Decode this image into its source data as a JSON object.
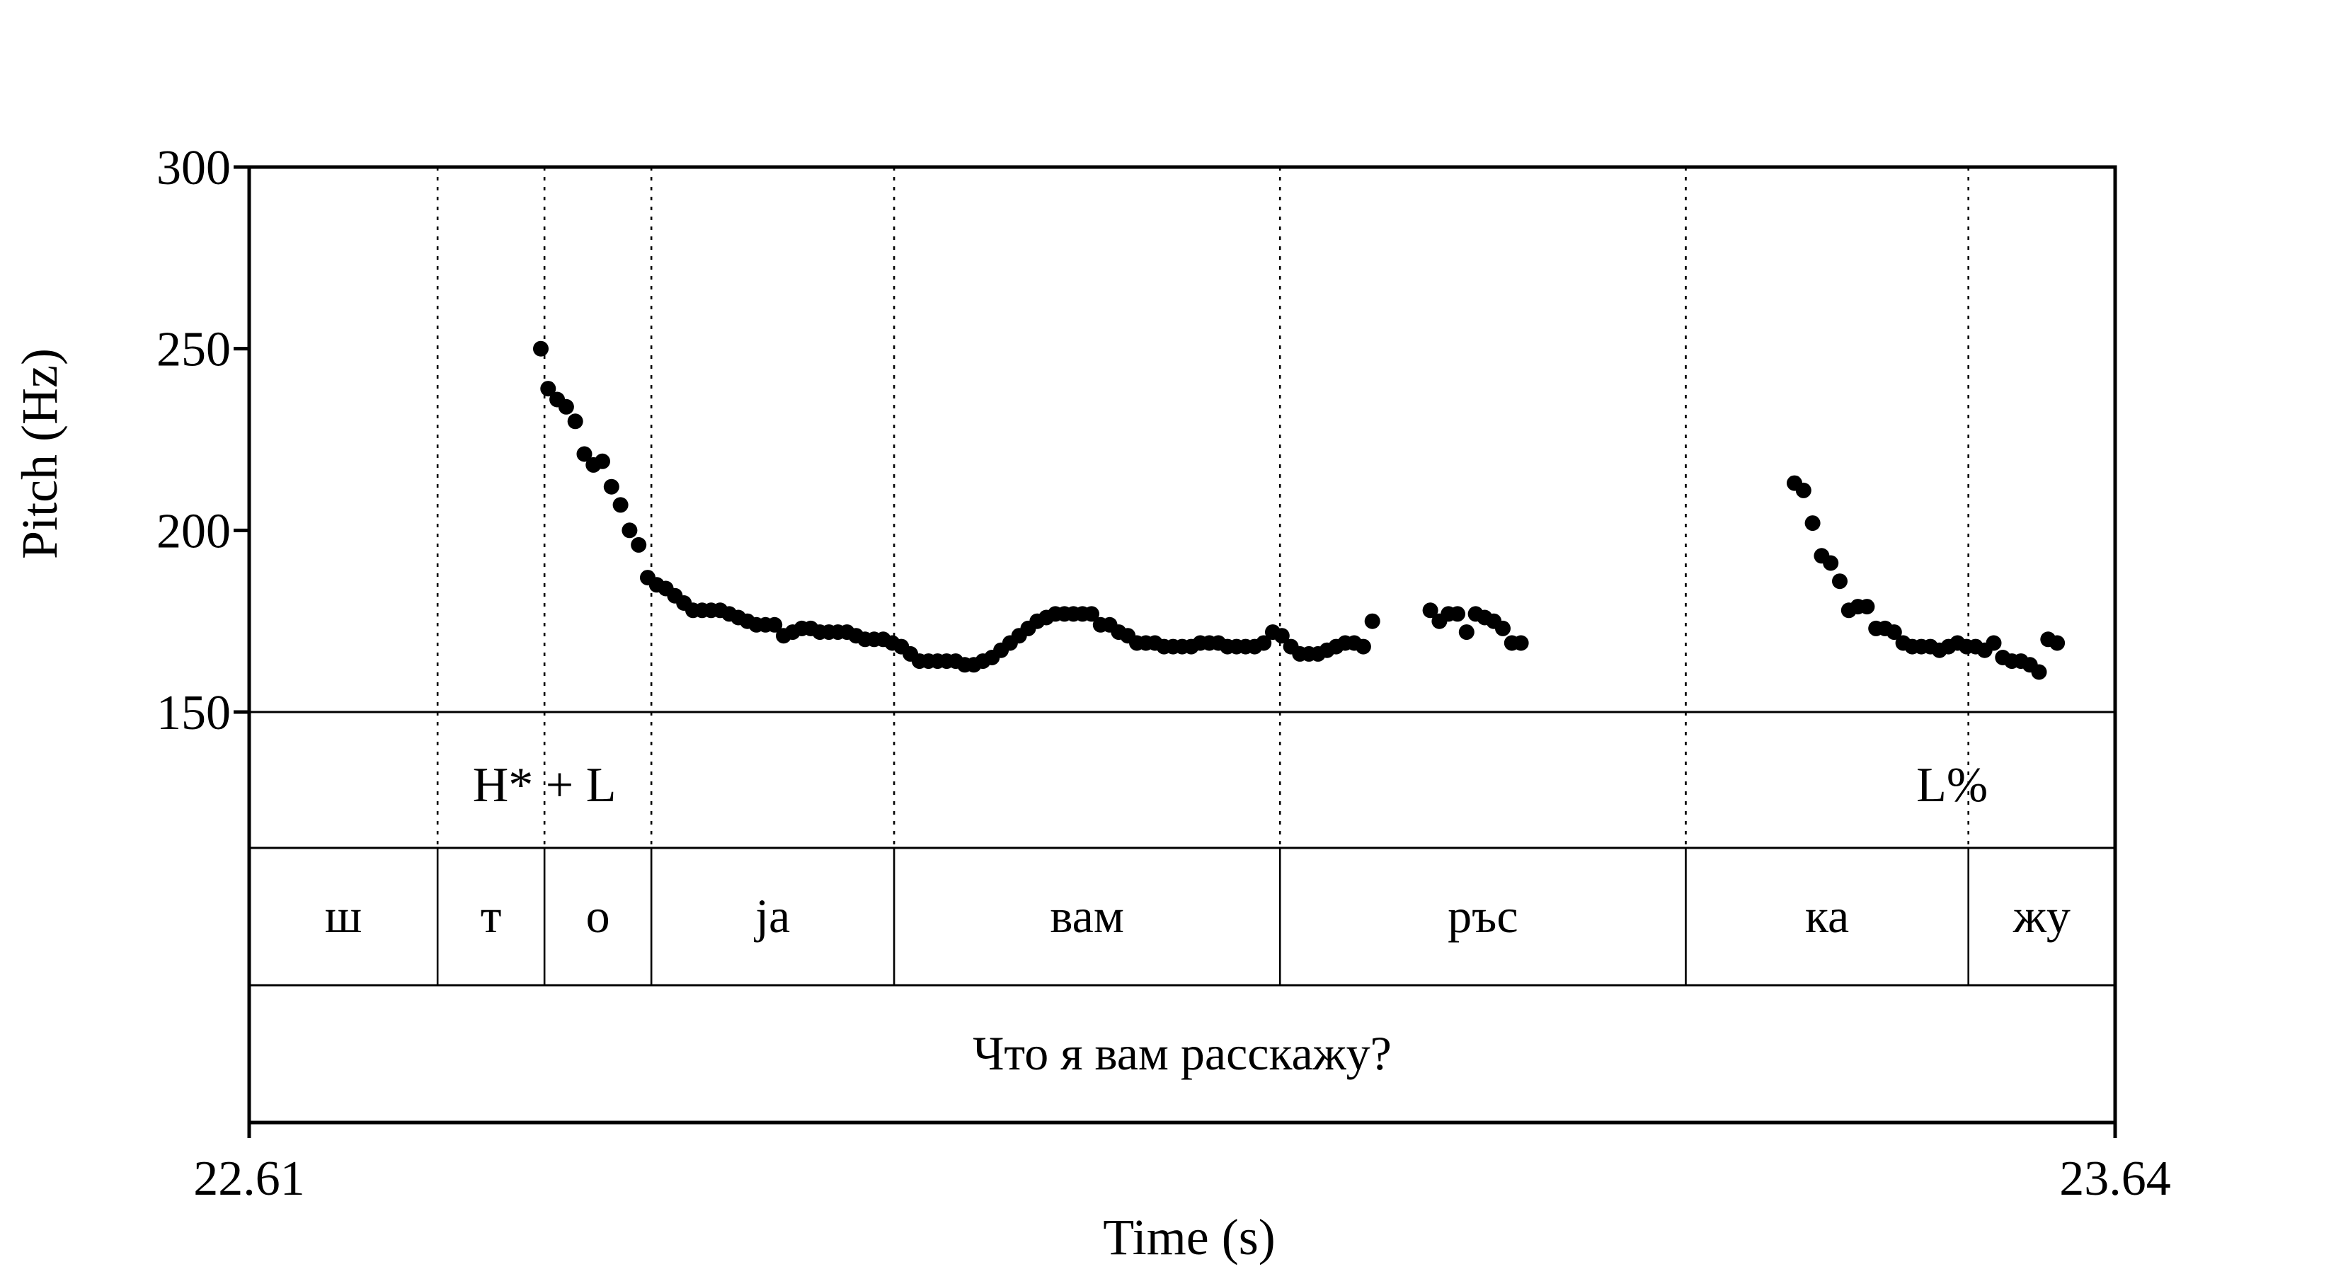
{
  "chart_data": {
    "type": "scatter",
    "title": "",
    "xlabel": "Time (s)",
    "ylabel": "Pitch (Hz)",
    "xlim": [
      22.61,
      23.64
    ],
    "ylim": [
      150,
      300
    ],
    "x_tick_labels": [
      "22.61",
      "23.64"
    ],
    "y_ticks": [
      150,
      200,
      250,
      300
    ],
    "y_tick_labels": [
      "150",
      "200",
      "250",
      "300"
    ],
    "grid": false,
    "legend": "none",
    "tones": [
      {
        "label": "H* + L",
        "t": 22.773
      },
      {
        "label": "L%",
        "t": 23.55
      }
    ],
    "segment_boundaries": [
      22.714,
      22.773,
      22.832,
      22.966,
      23.179,
      23.403,
      23.559
    ],
    "segments": [
      {
        "label": "ш",
        "start": 22.61,
        "end": 22.714
      },
      {
        "label": "т",
        "start": 22.714,
        "end": 22.773
      },
      {
        "label": "о",
        "start": 22.773,
        "end": 22.832
      },
      {
        "label": "ja",
        "start": 22.832,
        "end": 22.966
      },
      {
        "label": "вам",
        "start": 22.966,
        "end": 23.179
      },
      {
        "label": "ръс",
        "start": 23.179,
        "end": 23.403
      },
      {
        "label": "ка",
        "start": 23.403,
        "end": 23.559
      },
      {
        "label": "жу",
        "start": 23.559,
        "end": 23.64
      }
    ],
    "utterance": "Что я вам расскажу?",
    "series": [
      {
        "points": [
          [
            22.771,
            250
          ],
          [
            22.775,
            239
          ],
          [
            22.78,
            236
          ],
          [
            22.785,
            234
          ],
          [
            22.79,
            230
          ],
          [
            22.795,
            221
          ],
          [
            22.8,
            218
          ],
          [
            22.805,
            219
          ],
          [
            22.81,
            212
          ],
          [
            22.815,
            207
          ],
          [
            22.82,
            200
          ],
          [
            22.825,
            196
          ],
          [
            22.83,
            187
          ],
          [
            22.835,
            185
          ],
          [
            22.84,
            184
          ],
          [
            22.845,
            182
          ],
          [
            22.85,
            180
          ],
          [
            22.855,
            178
          ],
          [
            22.86,
            178
          ],
          [
            22.865,
            178
          ],
          [
            22.87,
            178
          ],
          [
            22.875,
            177
          ],
          [
            22.88,
            176
          ],
          [
            22.885,
            175
          ],
          [
            22.89,
            174
          ],
          [
            22.895,
            174
          ],
          [
            22.9,
            174
          ],
          [
            22.905,
            171
          ],
          [
            22.91,
            172
          ],
          [
            22.915,
            173
          ],
          [
            22.92,
            173
          ],
          [
            22.925,
            172
          ],
          [
            22.93,
            172
          ],
          [
            22.935,
            172
          ],
          [
            22.94,
            172
          ],
          [
            22.945,
            171
          ],
          [
            22.95,
            170
          ],
          [
            22.955,
            170
          ],
          [
            22.96,
            170
          ],
          [
            22.965,
            169
          ],
          [
            22.97,
            168
          ],
          [
            22.975,
            166
          ],
          [
            22.98,
            164
          ],
          [
            22.985,
            164
          ],
          [
            22.99,
            164
          ],
          [
            22.995,
            164
          ],
          [
            23.0,
            164
          ],
          [
            23.005,
            163
          ],
          [
            23.01,
            163
          ],
          [
            23.015,
            164
          ],
          [
            23.02,
            165
          ],
          [
            23.025,
            167
          ],
          [
            23.03,
            169
          ],
          [
            23.035,
            171
          ],
          [
            23.04,
            173
          ],
          [
            23.045,
            175
          ],
          [
            23.05,
            176
          ],
          [
            23.055,
            177
          ],
          [
            23.06,
            177
          ],
          [
            23.065,
            177
          ],
          [
            23.07,
            177
          ],
          [
            23.075,
            177
          ],
          [
            23.08,
            174
          ],
          [
            23.085,
            174
          ],
          [
            23.09,
            172
          ],
          [
            23.095,
            171
          ],
          [
            23.1,
            169
          ],
          [
            23.105,
            169
          ],
          [
            23.11,
            169
          ],
          [
            23.115,
            168
          ],
          [
            23.12,
            168
          ],
          [
            23.125,
            168
          ],
          [
            23.13,
            168
          ],
          [
            23.135,
            169
          ],
          [
            23.14,
            169
          ],
          [
            23.145,
            169
          ],
          [
            23.15,
            168
          ],
          [
            23.155,
            168
          ],
          [
            23.16,
            168
          ],
          [
            23.165,
            168
          ],
          [
            23.17,
            169
          ],
          [
            23.175,
            172
          ],
          [
            23.18,
            171
          ],
          [
            23.185,
            168
          ],
          [
            23.19,
            166
          ],
          [
            23.195,
            166
          ],
          [
            23.2,
            166
          ],
          [
            23.205,
            167
          ],
          [
            23.21,
            168
          ],
          [
            23.215,
            169
          ],
          [
            23.22,
            169
          ],
          [
            23.225,
            168
          ],
          [
            23.23,
            175
          ],
          [
            23.262,
            178
          ],
          [
            23.267,
            175
          ],
          [
            23.272,
            177
          ],
          [
            23.277,
            177
          ],
          [
            23.282,
            172
          ],
          [
            23.287,
            177
          ],
          [
            23.292,
            176
          ],
          [
            23.297,
            175
          ],
          [
            23.302,
            173
          ],
          [
            23.307,
            169
          ],
          [
            23.312,
            169
          ],
          [
            23.463,
            213
          ],
          [
            23.468,
            211
          ],
          [
            23.473,
            202
          ],
          [
            23.478,
            193
          ],
          [
            23.483,
            191
          ],
          [
            23.488,
            186
          ],
          [
            23.493,
            178
          ],
          [
            23.498,
            179
          ],
          [
            23.503,
            179
          ],
          [
            23.508,
            173
          ],
          [
            23.513,
            173
          ],
          [
            23.518,
            172
          ],
          [
            23.523,
            169
          ],
          [
            23.528,
            168
          ],
          [
            23.533,
            168
          ],
          [
            23.538,
            168
          ],
          [
            23.543,
            167
          ],
          [
            23.548,
            168
          ],
          [
            23.553,
            169
          ],
          [
            23.558,
            168
          ],
          [
            23.563,
            168
          ],
          [
            23.568,
            167
          ],
          [
            23.573,
            169
          ],
          [
            23.578,
            165
          ],
          [
            23.583,
            164
          ],
          [
            23.588,
            164
          ],
          [
            23.593,
            163
          ],
          [
            23.598,
            161
          ],
          [
            23.603,
            170
          ],
          [
            23.608,
            169
          ]
        ]
      }
    ]
  }
}
